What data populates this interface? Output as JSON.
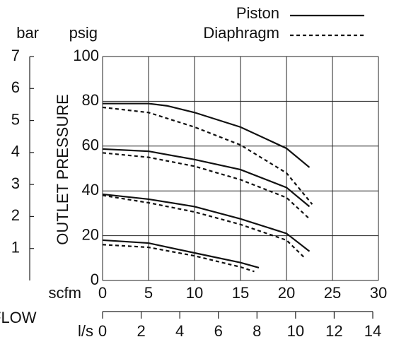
{
  "chart_data": {
    "type": "line",
    "legend": "top-right",
    "xlabel": "scfm",
    "x2label": "l/s",
    "xtitle": "FLOW",
    "ylabel": "OUTLET PRESSURE",
    "yunit": "psig",
    "y2unit": "bar",
    "xlim": [
      0,
      30
    ],
    "xticks": [
      0,
      5,
      10,
      15,
      20,
      25,
      30
    ],
    "x2lim": [
      0,
      14
    ],
    "x2ticks": [
      0,
      2,
      4,
      6,
      8,
      10,
      12,
      14
    ],
    "ylim": [
      0,
      100
    ],
    "yticks": [
      0,
      20,
      40,
      60,
      80,
      100
    ],
    "y2lim": [
      0,
      7
    ],
    "y2ticks": [
      1,
      2,
      3,
      4,
      5,
      6,
      7
    ],
    "grid": true,
    "series": [
      {
        "name": "Piston",
        "color": "#111111",
        "dash": "solid",
        "curves": [
          {
            "x": [
              0,
              5,
              7,
              10,
              15,
              20,
              22.5
            ],
            "values": [
              79,
              79,
              78,
              75,
              68.5,
              59,
              50.5
            ]
          },
          {
            "x": [
              0,
              5,
              10,
              15,
              20,
              22.5
            ],
            "values": [
              58.7,
              57.7,
              54,
              49.5,
              41.5,
              33
            ]
          },
          {
            "x": [
              0,
              5,
              10,
              15,
              20,
              22.5
            ],
            "values": [
              38.5,
              36.3,
              33,
              27.5,
              21,
              13
            ]
          },
          {
            "x": [
              0,
              5,
              10,
              15,
              17
            ],
            "values": [
              18,
              16.7,
              12.3,
              8,
              5.7
            ]
          }
        ]
      },
      {
        "name": "Diaphragm",
        "color": "#111111",
        "dash": "dashed",
        "curves": [
          {
            "x": [
              0,
              5,
              10,
              15,
              20,
              22.8
            ],
            "values": [
              77.3,
              75,
              68.5,
              60.5,
              48,
              34
            ]
          },
          {
            "x": [
              0,
              5,
              10,
              15,
              20,
              22.5
            ],
            "values": [
              57,
              55,
              51,
              45,
              37,
              27.5
            ]
          },
          {
            "x": [
              0,
              5,
              10,
              15,
              20,
              22
            ],
            "values": [
              38,
              34.7,
              30.6,
              25,
              18,
              10
            ]
          },
          {
            "x": [
              0,
              5,
              10,
              15,
              16.5
            ],
            "values": [
              16,
              14.8,
              11,
              6,
              4
            ]
          }
        ]
      }
    ]
  }
}
